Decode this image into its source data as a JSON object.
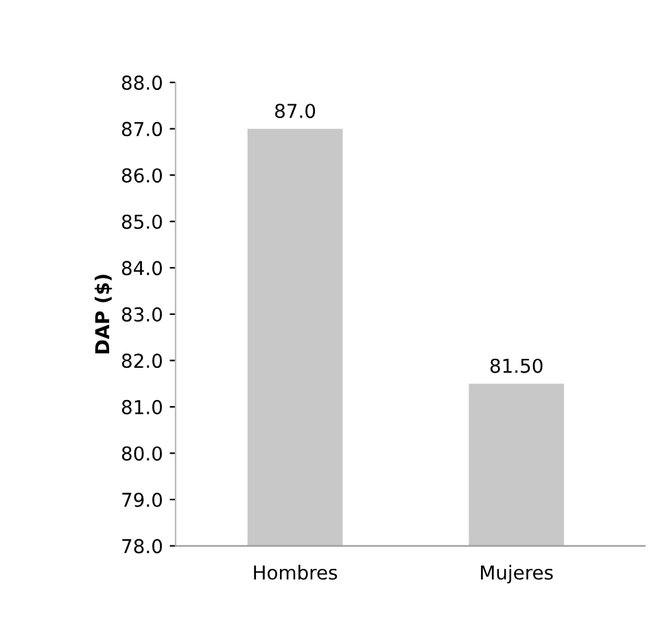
{
  "chart_data": {
    "type": "bar",
    "ylabel": "DAP ($)",
    "categories": [
      "Hombres",
      "Mujeres"
    ],
    "values": [
      87.0,
      81.5
    ],
    "color": "#c8c8c8",
    "value_labels": [
      "87.0",
      "81.50"
    ],
    "ylim": [
      78,
      88
    ],
    "yticks": [
      {
        "value": 78,
        "label": "78.0"
      },
      {
        "value": 79,
        "label": "79.0"
      },
      {
        "value": 80,
        "label": "80.0"
      },
      {
        "value": 81,
        "label": "81.0"
      },
      {
        "value": 82,
        "label": "82.0"
      },
      {
        "value": 83,
        "label": "83.0"
      },
      {
        "value": 84,
        "label": "84.0"
      },
      {
        "value": 85,
        "label": "85.0"
      },
      {
        "value": 86,
        "label": "86.0"
      },
      {
        "value": 87,
        "label": "87.0"
      },
      {
        "value": 88,
        "label": "88.0"
      }
    ],
    "grid": false
  }
}
